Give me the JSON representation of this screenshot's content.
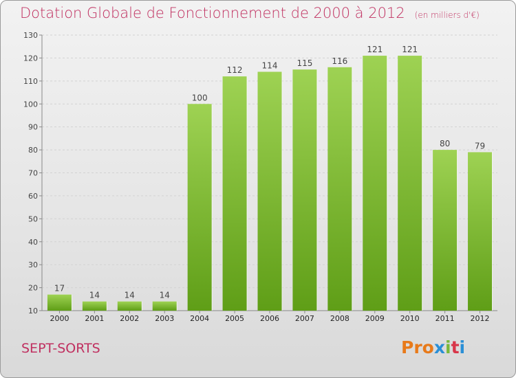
{
  "header": {
    "title": "Dotation Globale de Fonctionnement de 2000 à 2012",
    "unit": "(en milliers d'€)"
  },
  "footer": {
    "commune": "SEPT-SORTS",
    "brand": "Proxiti",
    "brand_colors": [
      "#e87a1a",
      "#e87a1a",
      "#e87a1a",
      "#2a8fd6",
      "#7ab83a",
      "#d8364a",
      "#2a8fd6"
    ]
  },
  "colors": {
    "bar_top": "#9ed253",
    "bar_bottom": "#5f9e17",
    "title": "#c03060"
  },
  "chart_data": {
    "type": "bar",
    "title": "Dotation Globale de Fonctionnement de 2000 à 2012",
    "subtitle": "(en milliers d'€)",
    "categories": [
      "2000",
      "2001",
      "2002",
      "2003",
      "2004",
      "2005",
      "2006",
      "2007",
      "2008",
      "2009",
      "2010",
      "2011",
      "2012"
    ],
    "values": [
      17,
      14,
      14,
      14,
      100,
      112,
      114,
      115,
      116,
      121,
      121,
      80,
      79
    ],
    "ylim": [
      10,
      130
    ],
    "yticks": [
      10,
      20,
      30,
      40,
      50,
      60,
      70,
      80,
      90,
      100,
      110,
      120,
      130
    ],
    "grid": true,
    "xlabel": "",
    "ylabel": ""
  }
}
